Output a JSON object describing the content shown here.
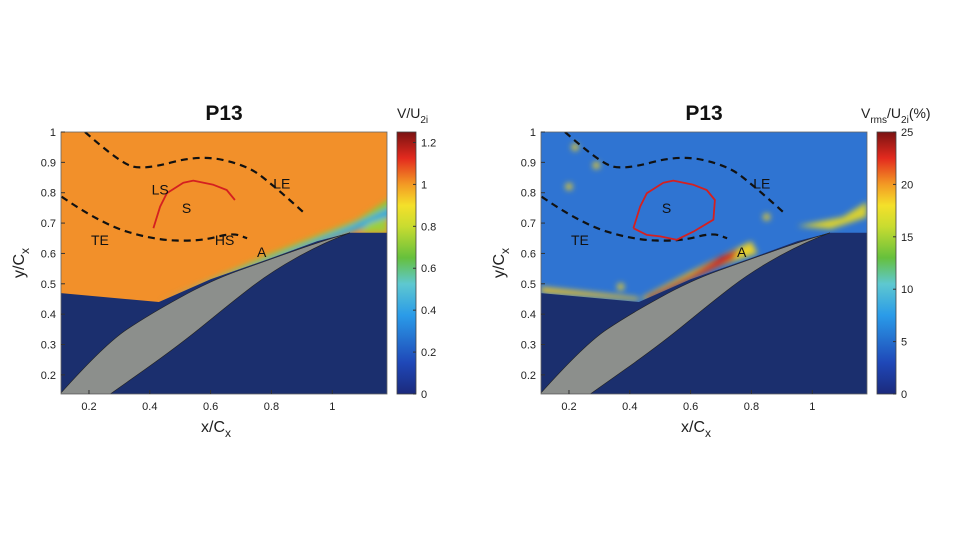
{
  "chart_data": [
    {
      "type": "heatmap",
      "title": "P13",
      "xlabel": {
        "main": "x/C",
        "sub": "x"
      },
      "ylabel": {
        "main": "y/C",
        "sub": "x"
      },
      "xlim": [
        0.108,
        1.18
      ],
      "ylim": [
        0.137,
        1.0
      ],
      "xticks": [
        0.2,
        0.4,
        0.6,
        0.8,
        1
      ],
      "yticks": [
        0.2,
        0.3,
        0.4,
        0.5,
        0.6,
        0.7,
        0.8,
        0.9,
        1
      ],
      "colorbar": {
        "label_parts": [
          {
            "t": "V/U",
            "sub": false
          },
          {
            "t": "2i",
            "sub": true
          }
        ],
        "range": [
          0,
          1.25
        ],
        "ticks": [
          0,
          0.2,
          0.4,
          0.6,
          0.8,
          1,
          1.2
        ],
        "colormap": "jet"
      },
      "annotations": [
        {
          "text": "LS",
          "x": 0.434,
          "y": 0.81
        },
        {
          "text": "S",
          "x": 0.521,
          "y": 0.749
        },
        {
          "text": "LE",
          "x": 0.834,
          "y": 0.83
        },
        {
          "text": "TE",
          "x": 0.236,
          "y": 0.645
        },
        {
          "text": "HS",
          "x": 0.646,
          "y": 0.645
        },
        {
          "text": "A",
          "x": 0.768,
          "y": 0.605
        }
      ],
      "field": "mean"
    },
    {
      "type": "heatmap",
      "title": "P13",
      "xlabel": {
        "main": "x/C",
        "sub": "x"
      },
      "ylabel": {
        "main": "y/C",
        "sub": "x"
      },
      "xlim": [
        0.108,
        1.18
      ],
      "ylim": [
        0.137,
        1.0
      ],
      "xticks": [
        0.2,
        0.4,
        0.6,
        0.8,
        1
      ],
      "yticks": [
        0.2,
        0.3,
        0.4,
        0.5,
        0.6,
        0.7,
        0.8,
        0.9,
        1
      ],
      "colorbar": {
        "label_parts": [
          {
            "t": "V",
            "sub": false
          },
          {
            "t": "rms",
            "sub": true
          },
          {
            "t": "/U",
            "sub": false
          },
          {
            "t": "2i",
            "sub": true
          },
          {
            "t": "(%)",
            "sub": false
          }
        ],
        "range": [
          0,
          25
        ],
        "ticks": [
          0,
          5,
          10,
          15,
          20,
          25
        ],
        "colormap": "jet"
      },
      "annotations": [
        {
          "text": "S",
          "x": 0.521,
          "y": 0.749
        },
        {
          "text": "LE",
          "x": 0.834,
          "y": 0.83
        },
        {
          "text": "TE",
          "x": 0.236,
          "y": 0.645
        },
        {
          "text": "A",
          "x": 0.768,
          "y": 0.605
        }
      ],
      "field": "rms"
    }
  ],
  "colors": {
    "blade": "#8c8f8c",
    "masked": "#1b2f6e",
    "contour": "#d42020",
    "dashed": "#111111"
  }
}
